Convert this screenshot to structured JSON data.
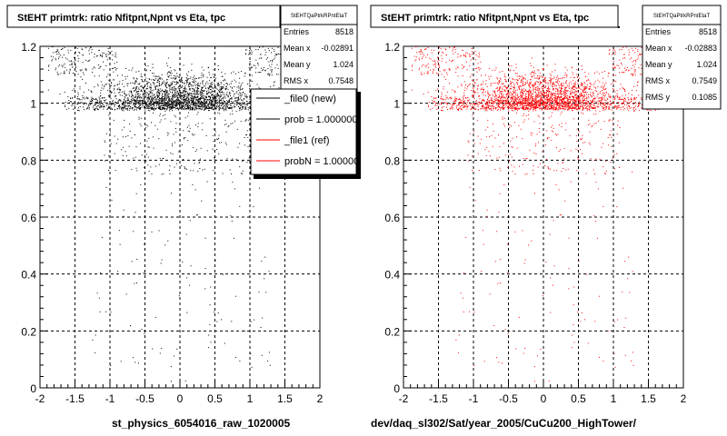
{
  "chart_data": [
    {
      "type": "scatter",
      "title": "StEHT primtrk: ratio Nfitpnt,Npnt vs Eta, tpc",
      "xlabel": "st_physics_6054016_raw_1020005",
      "ylabel": "",
      "xlim": [
        -2,
        2
      ],
      "ylim": [
        0,
        1.2
      ],
      "x_ticks": [
        "-2",
        "-1.5",
        "-1",
        "-0.5",
        "0",
        "0.5",
        "1",
        "1.5",
        "2"
      ],
      "y_ticks": [
        "0",
        "0.2",
        "0.4",
        "0.6",
        "0.8",
        "1",
        "1.2"
      ],
      "grid": true,
      "point_color": "#000000",
      "stats": {
        "name": "StEHTQaPtrkRPntEtaT",
        "rows": [
          {
            "label": "Entries",
            "value": "8518"
          },
          {
            "label": "Mean x",
            "value": "-0.02891"
          },
          {
            "label": "Mean y",
            "value": "1.024"
          },
          {
            "label": "RMS x",
            "value": "0.7548"
          }
        ]
      },
      "legend": [
        {
          "label": "_file0 (new)",
          "color": "#000000"
        },
        {
          "label": "prob = 1.000000",
          "color": "#000000"
        },
        {
          "label": "_file1 (ref)",
          "color": "#ff0000"
        },
        {
          "label": "probN = 1.000000",
          "color": "#ff0000"
        }
      ]
    },
    {
      "type": "scatter",
      "title": "StEHT primtrk: ratio Nfitpnt,Npnt vs Eta, tpc",
      "xlabel": "dev/daq_sl302/Sat/year_2005/CuCu200_HighTower/",
      "ylabel": "",
      "xlim": [
        -2,
        2
      ],
      "ylim": [
        0,
        1.2
      ],
      "x_ticks": [
        "-2",
        "-1.5",
        "-1",
        "-0.5",
        "0",
        "0.5",
        "1",
        "1.5",
        "2"
      ],
      "y_ticks": [
        "0",
        "0.2",
        "0.4",
        "0.6",
        "0.8",
        "1",
        "1.2"
      ],
      "grid": true,
      "point_color": "#ff0000",
      "stats": {
        "name": "StEHTQaPtrkRPntEtaT",
        "rows": [
          {
            "label": "Entries",
            "value": "8518"
          },
          {
            "label": "Mean x",
            "value": "-0.02883"
          },
          {
            "label": "Mean y",
            "value": "1.024"
          },
          {
            "label": "RMS x",
            "value": "0.7549"
          },
          {
            "label": "RMS y",
            "value": "0.1085"
          }
        ]
      }
    }
  ]
}
